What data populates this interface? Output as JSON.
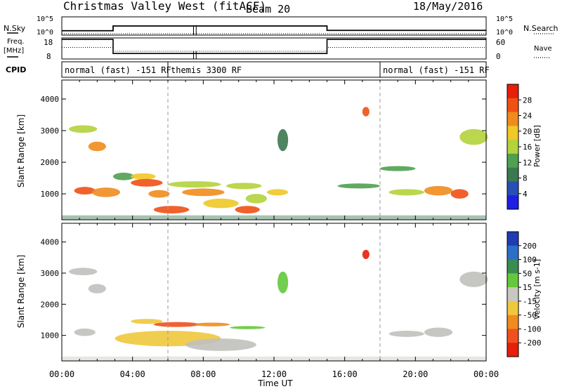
{
  "header": {
    "title": "Christmas Valley West (fitACF)",
    "beam": "Beam 20",
    "date": "18/May/2016"
  },
  "top_panels": {
    "nsky_label": "N.Sky",
    "nsky_ticks": [
      "10^5",
      "10^0"
    ],
    "nsearch_label": "N.Search",
    "nsearch_ticks": [
      "10^5",
      "10^0"
    ],
    "freq_label_1": "Freq.",
    "freq_label_2": "[MHz]",
    "freq_ticks": [
      "18",
      "8"
    ],
    "nave_label": "Nave",
    "nave_ticks": [
      "60",
      "0"
    ],
    "cpid_label": "CPID",
    "cpid_segments": [
      {
        "label": "normal (fast) -151 RF",
        "start": 0,
        "end": 6
      },
      {
        "label": "themis 3300 RF",
        "start": 6,
        "end": 18
      },
      {
        "label": "normal (fast) -151 RF",
        "start": 18,
        "end": 24
      }
    ],
    "freq_levels": [
      {
        "start": 0,
        "end": 2.9,
        "value": 17.3
      },
      {
        "start": 2.9,
        "end": 15.0,
        "value": 10.6
      },
      {
        "start": 15.0,
        "end": 24,
        "value": 17.3
      }
    ],
    "nave_levels": [
      {
        "start": 0,
        "end": 2.9,
        "value": 33
      },
      {
        "start": 2.9,
        "end": 15.0,
        "value": 22
      },
      {
        "start": 15.0,
        "end": 24,
        "value": 33
      }
    ],
    "nsky_levels": [
      {
        "start": 0,
        "end": 2.9,
        "value": 1.2
      },
      {
        "start": 2.9,
        "end": 15.0,
        "value": 2.5
      },
      {
        "start": 15.0,
        "end": 24,
        "value": 1.3
      }
    ]
  },
  "colors": {
    "power_scale": [
      "#1e1ee6",
      "#2850b4",
      "#3c7850",
      "#50a050",
      "#b4d23c",
      "#f0c828",
      "#f08c1e",
      "#f05014",
      "#e61e0a"
    ],
    "velocity_scale": [
      "#1e3cb4",
      "#2d6ec8",
      "#3c8c50",
      "#64c83c",
      "#c8c8c0",
      "#f0c83c",
      "#f08c1e",
      "#f0501e",
      "#e61e0a"
    ],
    "ground_scatter": "#c0c0bc"
  },
  "chart_data": [
    {
      "type": "heatmap",
      "name": "power",
      "ylabel": "Slant Range [km]",
      "x_ticks": [
        "00:00",
        "04:00",
        "08:00",
        "12:00",
        "16:00",
        "20:00",
        "00:00"
      ],
      "xlim_hours": [
        0,
        24
      ],
      "ylim": [
        180,
        4600
      ],
      "y_ticks": [
        1000,
        2000,
        3000,
        4000
      ],
      "colorbar_label": "Power [dB]",
      "colorbar_ticks": [
        "4",
        "8",
        "12",
        "16",
        "20",
        "24",
        "28"
      ],
      "colorbar_range": [
        0,
        30
      ],
      "blobs": [
        {
          "t": 1.2,
          "r": 3050,
          "dt": 0.8,
          "dr": 120,
          "v": 16
        },
        {
          "t": 2.0,
          "r": 2500,
          "dt": 0.5,
          "dr": 150,
          "v": 22
        },
        {
          "t": 1.3,
          "r": 1100,
          "dt": 0.6,
          "dr": 120,
          "v": 26
        },
        {
          "t": 2.5,
          "r": 1050,
          "dt": 0.8,
          "dr": 150,
          "v": 20
        },
        {
          "t": 3.5,
          "r": 1550,
          "dt": 0.6,
          "dr": 120,
          "v": 12
        },
        {
          "t": 4.6,
          "r": 1550,
          "dt": 0.7,
          "dr": 100,
          "v": 18
        },
        {
          "t": 4.8,
          "r": 1350,
          "dt": 0.9,
          "dr": 120,
          "v": 26
        },
        {
          "t": 5.5,
          "r": 1000,
          "dt": 0.6,
          "dr": 120,
          "v": 20
        },
        {
          "t": 6.2,
          "r": 500,
          "dt": 1.0,
          "dr": 120,
          "v": 26
        },
        {
          "t": 7.5,
          "r": 1300,
          "dt": 1.5,
          "dr": 100,
          "v": 14
        },
        {
          "t": 8.0,
          "r": 1050,
          "dt": 1.2,
          "dr": 120,
          "v": 22
        },
        {
          "t": 9.0,
          "r": 700,
          "dt": 1.0,
          "dr": 150,
          "v": 18
        },
        {
          "t": 10.3,
          "r": 1250,
          "dt": 1.0,
          "dr": 100,
          "v": 16
        },
        {
          "t": 10.5,
          "r": 500,
          "dt": 0.7,
          "dr": 120,
          "v": 26
        },
        {
          "t": 11.0,
          "r": 850,
          "dt": 0.6,
          "dr": 150,
          "v": 14
        },
        {
          "t": 12.2,
          "r": 1050,
          "dt": 0.6,
          "dr": 100,
          "v": 18
        },
        {
          "t": 12.5,
          "r": 2700,
          "dt": 0.3,
          "dr": 350,
          "v": 8
        },
        {
          "t": 17.2,
          "r": 3600,
          "dt": 0.2,
          "dr": 150,
          "v": 26
        },
        {
          "t": 16.8,
          "r": 1250,
          "dt": 1.2,
          "dr": 80,
          "v": 10
        },
        {
          "t": 19.0,
          "r": 1800,
          "dt": 1.0,
          "dr": 80,
          "v": 10
        },
        {
          "t": 19.5,
          "r": 1050,
          "dt": 1.0,
          "dr": 100,
          "v": 14
        },
        {
          "t": 21.3,
          "r": 1100,
          "dt": 0.8,
          "dr": 150,
          "v": 20
        },
        {
          "t": 22.5,
          "r": 1000,
          "dt": 0.5,
          "dr": 150,
          "v": 24
        },
        {
          "t": 23.3,
          "r": 2800,
          "dt": 0.8,
          "dr": 250,
          "v": 14
        }
      ]
    },
    {
      "type": "heatmap",
      "name": "velocity",
      "ylabel": "Slant Range [km]",
      "xlabel": "Time UT",
      "x_ticks": [
        "00:00",
        "04:00",
        "08:00",
        "12:00",
        "16:00",
        "20:00",
        "00:00"
      ],
      "xlim_hours": [
        0,
        24
      ],
      "ylim": [
        180,
        4600
      ],
      "y_ticks": [
        1000,
        2000,
        3000,
        4000
      ],
      "colorbar_label": "Velocity [m s-1]",
      "colorbar_ticks": [
        "200",
        "100",
        "50",
        "15",
        "-15",
        "-50",
        "-100",
        "-200"
      ],
      "colorbar_range": [
        -250,
        250
      ],
      "blobs": [
        {
          "t": 1.2,
          "r": 3050,
          "dt": 0.8,
          "dr": 120,
          "v": 0,
          "g": true
        },
        {
          "t": 2.0,
          "r": 2500,
          "dt": 0.5,
          "dr": 150,
          "v": 0,
          "g": true
        },
        {
          "t": 1.3,
          "r": 1100,
          "dt": 0.6,
          "dr": 120,
          "v": 0,
          "g": true
        },
        {
          "t": 4.8,
          "r": 1450,
          "dt": 0.9,
          "dr": 80,
          "v": -70
        },
        {
          "t": 6.5,
          "r": 1350,
          "dt": 1.3,
          "dr": 80,
          "v": -160
        },
        {
          "t": 8.5,
          "r": 1350,
          "dt": 1.0,
          "dr": 60,
          "v": -120
        },
        {
          "t": 10.5,
          "r": 1250,
          "dt": 1.0,
          "dr": 50,
          "v": 70
        },
        {
          "t": 6.0,
          "r": 900,
          "dt": 3.0,
          "dr": 250,
          "v": -40
        },
        {
          "t": 9.0,
          "r": 700,
          "dt": 2.0,
          "dr": 200,
          "v": 0,
          "g": true
        },
        {
          "t": 12.5,
          "r": 2700,
          "dt": 0.3,
          "dr": 350,
          "v": 80
        },
        {
          "t": 17.2,
          "r": 3600,
          "dt": 0.2,
          "dr": 150,
          "v": -200
        },
        {
          "t": 19.5,
          "r": 1050,
          "dt": 1.0,
          "dr": 100,
          "v": 0,
          "g": true
        },
        {
          "t": 21.3,
          "r": 1100,
          "dt": 0.8,
          "dr": 150,
          "v": 0,
          "g": true
        },
        {
          "t": 23.3,
          "r": 2800,
          "dt": 0.8,
          "dr": 250,
          "v": 0,
          "g": true
        }
      ]
    }
  ]
}
